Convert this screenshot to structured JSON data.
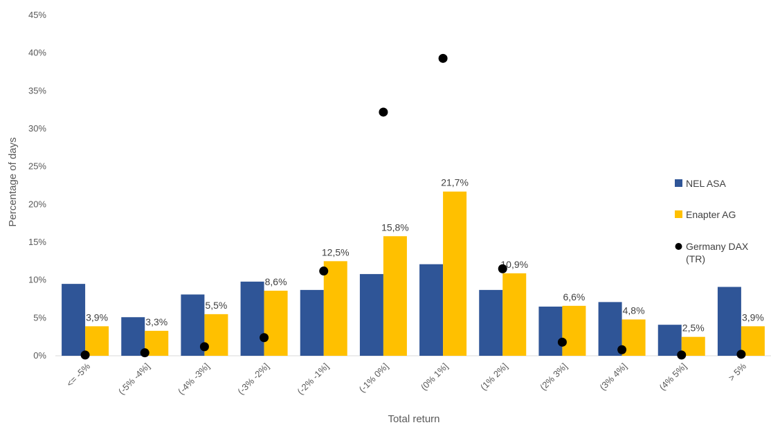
{
  "chart_data": {
    "type": "bar",
    "title": "",
    "xlabel": "Total return",
    "ylabel": "Percentage of days",
    "ylim": [
      0,
      45
    ],
    "yticks": [
      "0%",
      "5%",
      "10%",
      "15%",
      "20%",
      "25%",
      "30%",
      "35%",
      "40%",
      "45%"
    ],
    "grid": false,
    "legend_position": "right",
    "categories": [
      "<= -5%",
      "(-5% -4%]",
      "(-4% -3%]",
      "(-3% -2%]",
      "(-2% -1%]",
      "(-1% 0%]",
      "(0% 1%]",
      "(1% 2%]",
      "(2% 3%]",
      "(3% 4%]",
      "(4% 5%]",
      "> 5%"
    ],
    "series": [
      {
        "name": "NEL ASA",
        "kind": "bar",
        "color": "#2F5597",
        "values": [
          9.5,
          5.1,
          8.1,
          9.8,
          8.7,
          10.8,
          12.1,
          8.7,
          6.5,
          7.1,
          4.1,
          9.1
        ]
      },
      {
        "name": "Enapter AG",
        "kind": "bar",
        "color": "#FFC000",
        "values": [
          3.9,
          3.3,
          5.5,
          8.6,
          12.5,
          15.8,
          21.7,
          10.9,
          6.6,
          4.8,
          2.5,
          3.9
        ],
        "labels": [
          "3,9%",
          "3,3%",
          "5,5%",
          "8,6%",
          "12,5%",
          "15,8%",
          "21,7%",
          "10,9%",
          "6,6%",
          "4,8%",
          "2,5%",
          "3,9%"
        ]
      },
      {
        "name": "Germany DAX (TR)",
        "name_lines": [
          "Germany DAX",
          "(TR)"
        ],
        "kind": "scatter",
        "color": "#000000",
        "values": [
          0.1,
          0.4,
          1.2,
          2.4,
          11.2,
          32.2,
          39.3,
          11.5,
          1.8,
          0.8,
          0.1,
          0.2
        ]
      }
    ]
  }
}
